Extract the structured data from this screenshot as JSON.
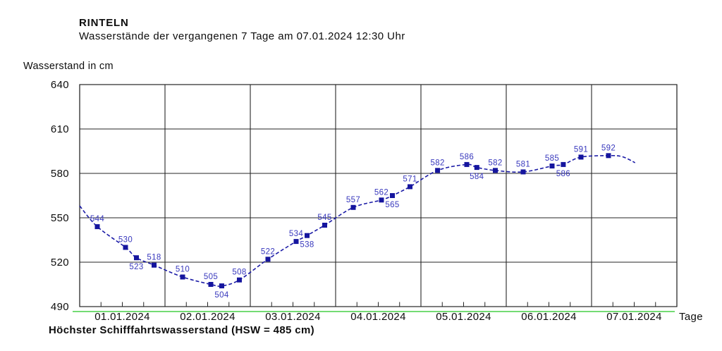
{
  "header": {
    "station_name": "RINTELN",
    "description": "Wasserstände der vergangenen 7 Tage am 07.01.2024 12:30 Uhr"
  },
  "chart_data": {
    "type": "line",
    "title": "RINTELN",
    "subtitle": "Wasserstände der vergangenen 7 Tage am 07.01.2024 12:30 Uhr",
    "ylabel": "Wasserstand in cm",
    "xlabel": "Tage",
    "ylim": [
      490,
      640
    ],
    "yticks": [
      490,
      520,
      550,
      580,
      610,
      640
    ],
    "days": [
      "01.01.2024",
      "02.01.2024",
      "03.01.2024",
      "04.01.2024",
      "05.01.2024",
      "06.01.2024",
      "07.01.2024"
    ],
    "grid": true,
    "line_style": "dashed",
    "series": [
      {
        "name": "Wasserstand",
        "points": [
          {
            "x": 0.207,
            "y": 544,
            "label": "544",
            "label_pos": "above"
          },
          {
            "x": 0.537,
            "y": 530,
            "label": "530",
            "label_pos": "above"
          },
          {
            "x": 0.665,
            "y": 523,
            "label": "523",
            "label_pos": "below"
          },
          {
            "x": 0.872,
            "y": 518,
            "label": "518",
            "label_pos": "above"
          },
          {
            "x": 1.207,
            "y": 510,
            "label": "510",
            "label_pos": "above"
          },
          {
            "x": 1.537,
            "y": 505,
            "label": "505",
            "label_pos": "above"
          },
          {
            "x": 1.665,
            "y": 504,
            "label": "504",
            "label_pos": "below"
          },
          {
            "x": 1.872,
            "y": 508,
            "label": "508",
            "label_pos": "above"
          },
          {
            "x": 2.207,
            "y": 522,
            "label": "522",
            "label_pos": "above"
          },
          {
            "x": 2.537,
            "y": 534,
            "label": "534",
            "label_pos": "above"
          },
          {
            "x": 2.665,
            "y": 538,
            "label": "538",
            "label_pos": "below"
          },
          {
            "x": 2.872,
            "y": 545,
            "label": "545",
            "label_pos": "above"
          },
          {
            "x": 3.207,
            "y": 557,
            "label": "557",
            "label_pos": "above"
          },
          {
            "x": 3.537,
            "y": 562,
            "label": "562",
            "label_pos": "above"
          },
          {
            "x": 3.665,
            "y": 565,
            "label": "565",
            "label_pos": "below"
          },
          {
            "x": 3.872,
            "y": 571,
            "label": "571",
            "label_pos": "above"
          },
          {
            "x": 4.195,
            "y": 582,
            "label": "582",
            "label_pos": "above"
          },
          {
            "x": 4.537,
            "y": 586,
            "label": "586",
            "label_pos": "above"
          },
          {
            "x": 4.655,
            "y": 584,
            "label": "584",
            "label_pos": "below"
          },
          {
            "x": 4.872,
            "y": 582,
            "label": "582",
            "label_pos": "above"
          },
          {
            "x": 5.198,
            "y": 581,
            "label": "581",
            "label_pos": "above"
          },
          {
            "x": 5.537,
            "y": 585,
            "label": "585",
            "label_pos": "above"
          },
          {
            "x": 5.669,
            "y": 586,
            "label": "586",
            "label_pos": "below"
          },
          {
            "x": 5.876,
            "y": 591,
            "label": "591",
            "label_pos": "above"
          },
          {
            "x": 6.198,
            "y": 592,
            "label": "592",
            "label_pos": "above"
          }
        ],
        "curve_lead": [
          {
            "x": 0.0,
            "y": 558
          }
        ],
        "curve_tail": [
          {
            "x": 6.36,
            "y": 591.3
          },
          {
            "x": 6.51,
            "y": 587.2
          }
        ]
      }
    ],
    "hsw": {
      "value_cm": 485,
      "caption": "Höchster Schifffahrtswasserstand (HSW = 485 cm)",
      "line_color": "#74db74"
    },
    "colors": {
      "line": "#1a1aa6",
      "marker": "#15159e",
      "value_label": "#3838bd",
      "grid": "#262626",
      "text": "#0d0d0d"
    }
  }
}
